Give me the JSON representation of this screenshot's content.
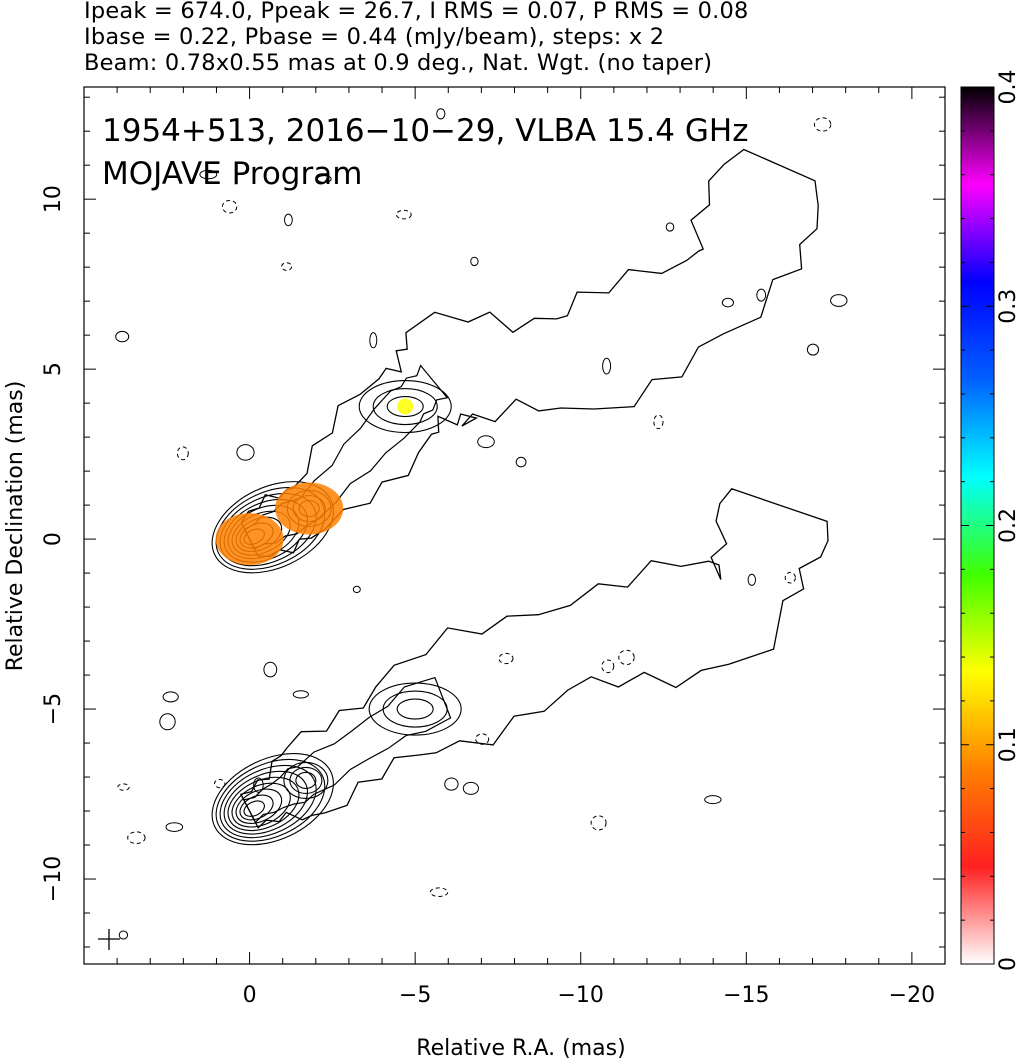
{
  "header": {
    "line1": "Ipeak = 674.0, Ppeak = 26.7, I RMS = 0.07, P RMS = 0.08",
    "line2": "Ibase = 0.22, Pbase = 0.44 (mJy/beam), steps: x 2",
    "line3": "Beam: 0.78x0.55 mas at 0.9 deg., Nat. Wgt. (no taper)"
  },
  "chart_data": {
    "type": "heatmap",
    "annotation_line1": "1954+513, 2016−10−29, VLBA 15.4 GHz",
    "annotation_line2": "MOJAVE Program",
    "xlabel": "Relative R.A. (mas)",
    "ylabel": "Relative Declination (mas)",
    "xlim": [
      5,
      -21
    ],
    "ylim": [
      -12.5,
      13.3
    ],
    "x_ticks": [
      0,
      -5,
      -10,
      -15,
      -20
    ],
    "x_tick_labels": [
      "0",
      "−5",
      "−10",
      "−15",
      "−20"
    ],
    "y_ticks": [
      -10,
      -5,
      0,
      5,
      10
    ],
    "y_tick_labels": [
      "−10",
      "−5",
      "0",
      "5",
      "10"
    ],
    "colorbar": {
      "range": [
        0,
        0.4
      ],
      "ticks": [
        0,
        0.1,
        0.2,
        0.3,
        0.4
      ],
      "tick_labels": [
        "0",
        "0.1",
        "0.2",
        "0.3",
        "0.4"
      ],
      "colors": [
        "#ffffff",
        "#ff2020",
        "#ff8000",
        "#ffff00",
        "#40ff00",
        "#00ffff",
        "#0060ff",
        "#0000ff",
        "#ff00ff",
        "#000000"
      ]
    },
    "panels": [
      {
        "name": "polarization",
        "offset_dec": 0,
        "core": [
          0,
          0
        ],
        "features": [
          [
            0,
            0
          ],
          [
            -1.8,
            0.9
          ],
          [
            -4.7,
            3.9
          ],
          [
            -6,
            5
          ],
          [
            -10,
            5.2
          ],
          [
            -14.5,
            7.5
          ],
          [
            -16,
            11
          ]
        ],
        "pol_peaks": [
          {
            "x": 0,
            "y": 0,
            "value": 0.07
          },
          {
            "x": -1.8,
            "y": 0.9,
            "value": 0.07
          },
          {
            "x": -4.7,
            "y": 3.9,
            "value": 0.15
          }
        ]
      },
      {
        "name": "total_intensity",
        "offset_dec": -8,
        "core": [
          0,
          -8
        ],
        "features": [
          [
            0,
            -8
          ],
          [
            -1.7,
            -7.1
          ],
          [
            -5,
            -5
          ],
          [
            -10,
            -3
          ],
          [
            -15,
            -2
          ],
          [
            -16,
            1
          ]
        ]
      }
    ]
  }
}
